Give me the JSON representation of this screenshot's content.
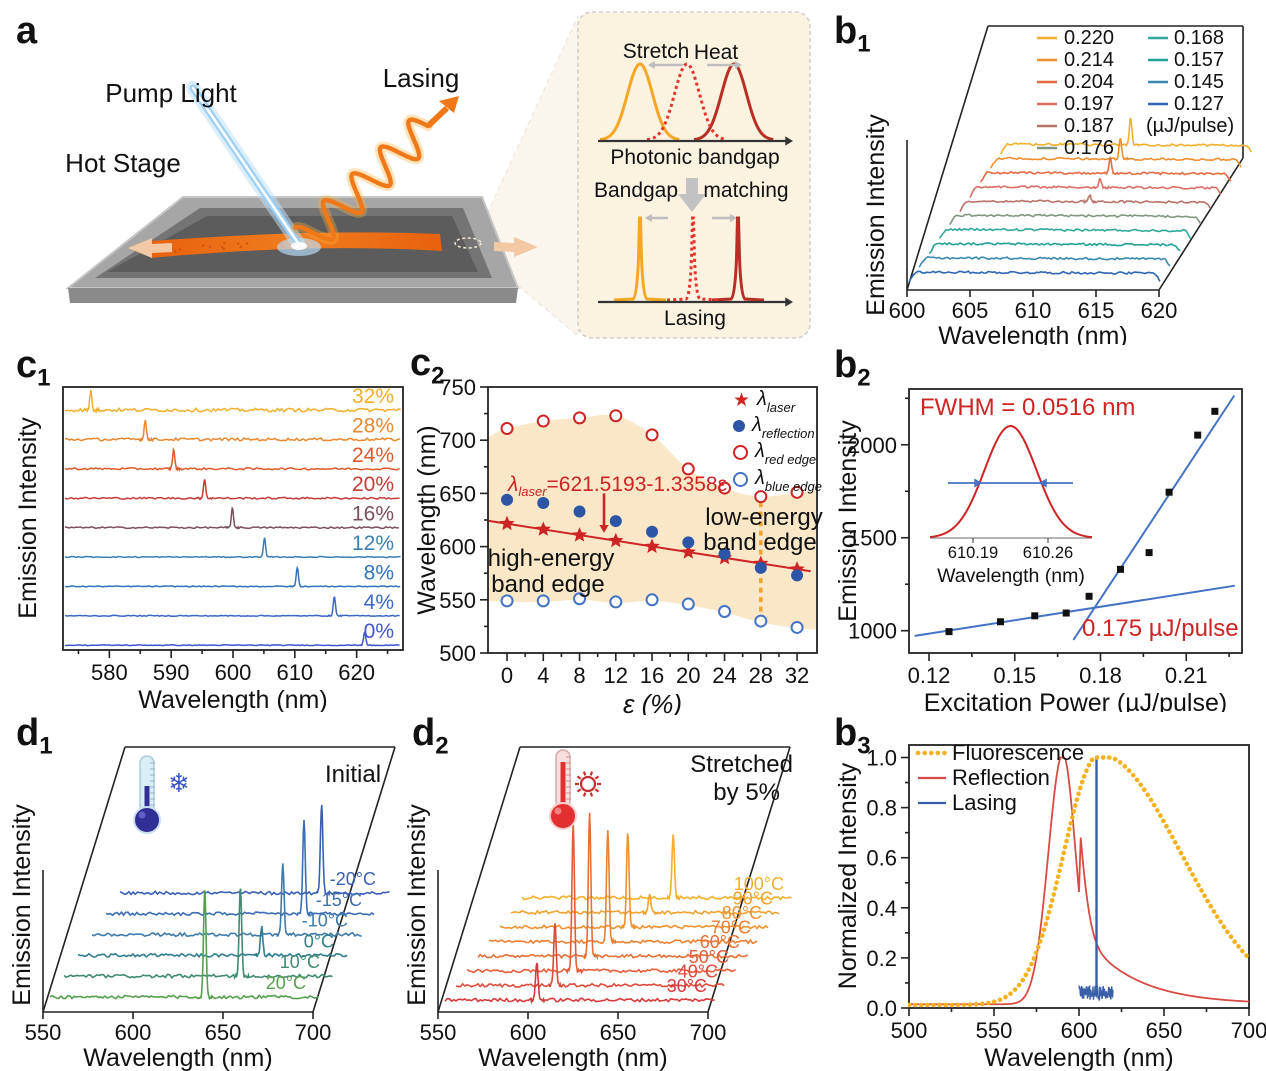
{
  "panels": {
    "a": {
      "label": "a",
      "pump_light": "Pump Light",
      "lasing": "Lasing",
      "hot_stage": "Hot Stage",
      "inset": {
        "stretch": "Stretch",
        "heat": "Heat",
        "axis1": "Photonic bandgap",
        "bandgap": "Bandgap",
        "matching": "matching",
        "axis2": "Lasing",
        "curve_colors": {
          "left": "#F5A623",
          "middle": "#E8342C",
          "right": "#B92E25"
        }
      }
    },
    "b1": {
      "label": "b",
      "sub": "1"
    },
    "b2": {
      "label": "b",
      "sub": "2"
    },
    "b3": {
      "label": "b",
      "sub": "3"
    },
    "c1": {
      "label": "c",
      "sub": "1"
    },
    "c2": {
      "label": "c",
      "sub": "2"
    },
    "d1": {
      "label": "d",
      "sub": "1"
    },
    "d2": {
      "label": "d",
      "sub": "2"
    }
  },
  "c2_text": {
    "equation_lambda": "λ",
    "equation_sub": "laser",
    "equation_rest": "=621.5193-1.3358ε",
    "high1": "high-energy",
    "high2": "band edge",
    "low1": "low-energy",
    "low2": "band edge"
  },
  "b2_text": {
    "fwhm": "FWHM = 0.0516 nm",
    "threshold": "0.175 µJ/pulse"
  },
  "d1_text": {
    "annotation": "Initial"
  },
  "d2_text": {
    "annotation1": "Stretched",
    "annotation2": "by 5%"
  },
  "chart_data": [
    {
      "id": "b1",
      "type": "waterfall3d",
      "xlabel": "Wavelength (nm)",
      "ylabel": "Emission Intensity",
      "x_ticks": [
        600,
        605,
        610,
        615,
        620
      ],
      "xrange": [
        600,
        620
      ],
      "legend_note": "(µJ/pulse)",
      "series": [
        {
          "label": "0.220",
          "color": "#F2AF2B",
          "peak_nm": 610.3,
          "peak_h": 27
        },
        {
          "label": "0.214",
          "color": "#EE8F2F",
          "peak_nm": 610.3,
          "peak_h": 21
        },
        {
          "label": "0.204",
          "color": "#E56A40",
          "peak_nm": 610.3,
          "peak_h": 15
        },
        {
          "label": "0.197",
          "color": "#DC6E66",
          "peak_nm": 610.3,
          "peak_h": 9
        },
        {
          "label": "0.187",
          "color": "#B97269",
          "peak_nm": 610.3,
          "peak_h": 6
        },
        {
          "label": "0.176",
          "color": "#7F9781",
          "peak_nm": 610.3,
          "peak_h": 0
        },
        {
          "label": "0.168",
          "color": "#2FA89B",
          "peak_nm": 610.3,
          "peak_h": 0
        },
        {
          "label": "0.157",
          "color": "#21A294",
          "peak_nm": 610.3,
          "peak_h": 0
        },
        {
          "label": "0.145",
          "color": "#3A89B0",
          "peak_nm": 610.3,
          "peak_h": 0
        },
        {
          "label": "0.127",
          "color": "#2F66B3",
          "peak_nm": 610.3,
          "peak_h": 0
        }
      ]
    },
    {
      "id": "c1",
      "type": "stacked_spectra",
      "xlabel": "Wavelength (nm)",
      "ylabel": "Emission Intensity",
      "x_ticks": [
        580,
        590,
        600,
        610,
        620
      ],
      "xrange": [
        572.5,
        627.5
      ],
      "series": [
        {
          "label": "32%",
          "color": "#F0AF2B",
          "peak_nm": 577.0,
          "peak_h": 19,
          "noise": 1.7
        },
        {
          "label": "28%",
          "color": "#E8872E",
          "peak_nm": 585.8,
          "peak_h": 19,
          "noise": 1.4
        },
        {
          "label": "24%",
          "color": "#DF5A2B",
          "peak_nm": 590.4,
          "peak_h": 19,
          "noise": 1.0
        },
        {
          "label": "20%",
          "color": "#C63C38",
          "peak_nm": 595.4,
          "peak_h": 19,
          "noise": 0.9
        },
        {
          "label": "16%",
          "color": "#7C4F60",
          "peak_nm": 599.9,
          "peak_h": 19,
          "noise": 0.8
        },
        {
          "label": "12%",
          "color": "#3B7EB4",
          "peak_nm": 605.1,
          "peak_h": 19,
          "noise": 0.5
        },
        {
          "label": "8%",
          "color": "#3173BE",
          "peak_nm": 610.4,
          "peak_h": 19,
          "noise": 0.5
        },
        {
          "label": "4%",
          "color": "#3A67C6",
          "peak_nm": 616.4,
          "peak_h": 19,
          "noise": 0.5
        },
        {
          "label": "0%",
          "color": "#4156CF",
          "peak_nm": 621.3,
          "peak_h": 13,
          "noise": 0.4
        }
      ]
    },
    {
      "id": "c2",
      "type": "scatter",
      "xlabel": "ε (%)",
      "ylabel": "Wavelength (nm)",
      "x_ticks": [
        0,
        4,
        8,
        12,
        16,
        20,
        24,
        28,
        32
      ],
      "y_ticks": [
        500,
        550,
        600,
        650,
        700,
        750
      ],
      "xrange": [
        -2.1,
        34.2
      ],
      "yrange": [
        500,
        750
      ],
      "x": [
        0,
        4,
        8,
        12,
        16,
        20,
        24,
        28,
        32
      ],
      "series": [
        {
          "name": "laser",
          "marker": "star",
          "color": "#CE2424",
          "values": [
            621.5,
            616.2,
            610.8,
            605.5,
            600.1,
            594.8,
            589.4,
            584.1,
            578.8
          ],
          "fit_line": {
            "x1": -2,
            "y1": 624.2,
            "x2": 33.5,
            "y2": 576.8
          }
        },
        {
          "name": "reflection",
          "marker": "circle_filled",
          "color": "#2C55A5",
          "values": [
            644,
            641,
            633,
            624,
            614,
            604,
            593,
            580,
            573
          ]
        },
        {
          "name": "red_edge",
          "marker": "circle_open",
          "color": "#CE2424",
          "values": [
            711,
            718,
            721,
            723,
            705,
            673,
            655,
            647,
            651
          ]
        },
        {
          "name": "blue_edge",
          "marker": "circle_open",
          "color": "#4472C4",
          "values": [
            549,
            549,
            551,
            548,
            550,
            546,
            539,
            530,
            524
          ]
        }
      ],
      "band": {
        "fill": "#FAE7C8",
        "x": [
          -2.1,
          0,
          4,
          8,
          12,
          16,
          20,
          24,
          28,
          32,
          34.2
        ],
        "upper": [
          703,
          711,
          718,
          721,
          723,
          705,
          673,
          655,
          647,
          651,
          653
        ],
        "lower": [
          549,
          548,
          548,
          550,
          547,
          549,
          545,
          538,
          529,
          523,
          522
        ]
      },
      "dashed_line": {
        "x": 28,
        "y1": 530,
        "y2": 648,
        "color": "#F0A22E"
      },
      "arrow": {
        "x": 10.7,
        "y1": 650,
        "y2": 613,
        "color": "#CE2424"
      },
      "legend": [
        {
          "marker": "star",
          "color": "#CE2424",
          "label": "λ",
          "sub": "laser"
        },
        {
          "marker": "circle_filled",
          "color": "#2C55A5",
          "label": "λ",
          "sub": "reflection"
        },
        {
          "marker": "circle_open",
          "color": "#CE2424",
          "label": "λ",
          "sub": "red edge"
        },
        {
          "marker": "circle_open",
          "color": "#4472C4",
          "label": "λ",
          "sub": "blue edge"
        }
      ]
    },
    {
      "id": "b2",
      "type": "scatter_threshold",
      "xlabel": "Excitation Power (µJ/pulse)",
      "ylabel": "Emission Intensity",
      "x_ticks": [
        "0.12",
        "0.15",
        "0.18",
        "0.21"
      ],
      "y_ticks": [
        1000,
        1500,
        2000
      ],
      "xrange": [
        0.113,
        0.2295
      ],
      "yrange": [
        880,
        2300
      ],
      "points": [
        [
          0.127,
          995
        ],
        [
          0.145,
          1048
        ],
        [
          0.157,
          1080
        ],
        [
          0.168,
          1095
        ],
        [
          0.176,
          1185
        ],
        [
          0.187,
          1330
        ],
        [
          0.197,
          1420
        ],
        [
          0.204,
          1745
        ],
        [
          0.214,
          2052
        ],
        [
          0.22,
          2180
        ]
      ],
      "fit_lines": [
        {
          "x1": 0.115,
          "y1": 972,
          "x2": 0.227,
          "y2": 1242
        },
        {
          "x1": 0.1705,
          "y1": 950,
          "x2": 0.2268,
          "y2": 2265
        }
      ],
      "point_color": "#111111",
      "line_color": "#4472C4",
      "accent": "#CE2424",
      "inset": {
        "xlabel": "Wavelength (nm)",
        "x_ticks": [
          "610.19",
          "610.26"
        ],
        "curve_color": "#CE2424",
        "arrow_color": "#4472C4"
      }
    },
    {
      "id": "d1",
      "type": "waterfall3d",
      "xlabel": "Wavelength (nm)",
      "ylabel": "Emission Intensity",
      "x_ticks": [
        550,
        600,
        650,
        700
      ],
      "xrange": [
        550,
        700
      ],
      "icon": "thermometer-cold-snowflake",
      "series": [
        {
          "label": "-20°C",
          "color": "#3A60B6",
          "peak_nm": 662,
          "peak_h": 88
        },
        {
          "label": "-15°C",
          "color": "#3B6EB2",
          "peak_nm": 660,
          "peak_h": 93
        },
        {
          "label": "-10°C",
          "color": "#3E7BAB",
          "peak_nm": 656,
          "peak_h": 70
        },
        {
          "label": "0°C",
          "color": "#2F7D8E",
          "peak_nm": 652,
          "peak_h": 28
        },
        {
          "label": "10°C",
          "color": "#418A71",
          "peak_nm": 648,
          "peak_h": 88
        },
        {
          "label": "20°C",
          "color": "#55A04E",
          "peak_nm": 636,
          "peak_h": 108
        }
      ]
    },
    {
      "id": "d2",
      "type": "waterfall3d",
      "xlabel": "Wavelength (nm)",
      "ylabel": "Emission Intensity",
      "x_ticks": [
        550,
        600,
        650,
        700
      ],
      "xrange": [
        550,
        700
      ],
      "icon": "thermometer-hot-sun",
      "series": [
        {
          "label": "100°C",
          "color": "#F2B02B",
          "peak_nm": 634,
          "peak_h": 62
        },
        {
          "label": "90°C",
          "color": "#F0A12E",
          "peak_nm": 627,
          "peak_h": 18
        },
        {
          "label": "80°C",
          "color": "#EE9231",
          "peak_nm": 621,
          "peak_h": 95
        },
        {
          "label": "70°C",
          "color": "#EA8134",
          "peak_nm": 616,
          "peak_h": 112
        },
        {
          "label": "60°C",
          "color": "#E66F36",
          "peak_nm": 612,
          "peak_h": 142
        },
        {
          "label": "50°C",
          "color": "#E25D38",
          "peak_nm": 609,
          "peak_h": 148
        },
        {
          "label": "40°C",
          "color": "#DC4B3A",
          "peak_nm": 605,
          "peak_h": 62
        },
        {
          "label": "30°C",
          "color": "#D63A3C",
          "peak_nm": 601,
          "peak_h": 38
        }
      ]
    },
    {
      "id": "b3",
      "type": "line",
      "xlabel": "Wavelength (nm)",
      "ylabel": "Normalized Intensity",
      "x_ticks": [
        500,
        550,
        600,
        650,
        700
      ],
      "y_ticks": [
        "0.0",
        "0.2",
        "0.4",
        "0.6",
        "0.8",
        "1.0"
      ],
      "xrange": [
        500,
        700
      ],
      "yrange": [
        0,
        1.05
      ],
      "series": [
        {
          "name": "Fluorescence",
          "style": "dotted",
          "color": "#F5B120",
          "profile": {
            "peak": 612,
            "sigma_l": 21,
            "sigma_r": 48,
            "base": 0.012
          }
        },
        {
          "name": "Reflection",
          "style": "solid",
          "color": "#D84B44",
          "profile": {
            "peak": 590.5,
            "sigma_l": 8.5,
            "sigma_r": 7.5,
            "tail_amp": 0.3,
            "tail_decay": 30,
            "base": 0.015
          }
        },
        {
          "name": "Lasing",
          "style": "spike",
          "color": "#3A5FA8",
          "profile": {
            "spike": 610.3,
            "noise_lo": 600,
            "noise_hi": 620,
            "noise_base": 0.03,
            "noise_amp": 0.06
          }
        }
      ]
    }
  ]
}
